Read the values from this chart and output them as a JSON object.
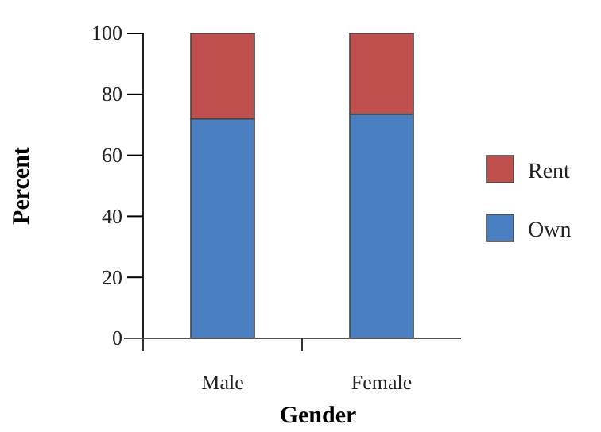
{
  "chart_data": {
    "type": "bar",
    "stacked": true,
    "categories": [
      "Male",
      "Female"
    ],
    "xlabel": "Gender",
    "ylabel": "Percent",
    "ylim": [
      0,
      100
    ],
    "yticks": [
      0,
      20,
      40,
      60,
      80,
      100
    ],
    "legend": "right",
    "grid": false,
    "series": [
      {
        "name": "Own",
        "color": "#4a7fc1",
        "values": [
          72,
          73.5
        ]
      },
      {
        "name": "Rent",
        "color": "#c0504d",
        "values": [
          28,
          26.5
        ]
      }
    ]
  }
}
